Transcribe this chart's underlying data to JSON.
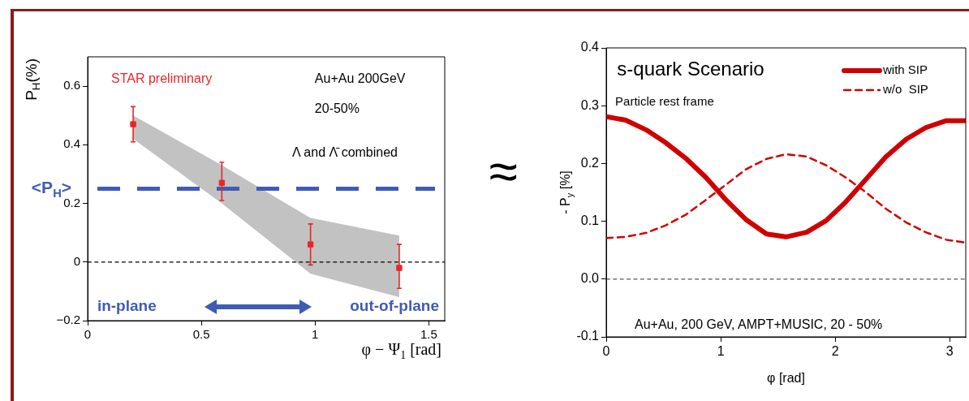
{
  "chart_data": [
    {
      "type": "scatter",
      "xlabel": "φ − Ψ$_{1}$ [rad]",
      "ylabel": "P$_{H}$(%)",
      "xlim": [
        0,
        1.57
      ],
      "xticks": [
        0,
        0.5,
        1,
        1.5
      ],
      "ylim": [
        -0.2,
        0.7
      ],
      "yticks": [
        {
          "value": -0.2,
          "label": "−0.2"
        },
        0,
        0.2,
        0.4,
        0.6
      ],
      "grid": false,
      "legend": false,
      "marker": "square",
      "series": [
        {
          "color": "#e8262a",
          "x": [
            0.2,
            0.59,
            0.98,
            1.37
          ],
          "values": [
            0.47,
            0.27,
            0.06,
            -0.02
          ],
          "errors": [
            [
              0.41,
              0.53
            ],
            [
              0.21,
              0.34
            ],
            [
              -0.01,
              0.13
            ],
            [
              -0.09,
              0.06
            ]
          ],
          "lower": [
            0.42,
            0.2,
            -0.04,
            -0.12
          ],
          "upper": [
            0.5,
            0.33,
            0.15,
            0.09
          ]
        }
      ],
      "ref_lines": [
        {
          "axis": "y",
          "value": 0,
          "color": "#000000",
          "line_style": "dashed"
        },
        {
          "axis": "y",
          "value": 0.25,
          "label": "<P$_{H}$>",
          "color": "#3f5bb5",
          "line_style": "dashed"
        }
      ],
      "annotations": [
        "STAR preliminary",
        "Au+Au 200GeV",
        "20-50%",
        "Λ and Λ̄ combined",
        "in-plane",
        "out-of-plane",
        "≈"
      ]
    },
    {
      "type": "line",
      "xlabel": "φ [rad]",
      "ylabel": "- P$_{y}$ [%]",
      "xlim": [
        0,
        3.14
      ],
      "xticks": [
        0,
        1,
        2,
        3
      ],
      "ylim": [
        -0.1,
        0.4
      ],
      "yticks": [
        {
          "value": -0.1,
          "label": "-0.1"
        },
        {
          "value": 0,
          "label": "0.0"
        },
        0.1,
        0.2,
        0.3,
        0.4
      ],
      "grid": false,
      "legend": "top right",
      "marker": "none",
      "x": [
        0,
        0.17,
        0.35,
        0.52,
        0.7,
        0.87,
        1.05,
        1.22,
        1.4,
        1.57,
        1.75,
        1.92,
        2.09,
        2.27,
        2.44,
        2.62,
        2.79,
        2.97,
        3.14
      ],
      "series": [
        {
          "name": "with SIP",
          "color": "#d00000",
          "line_style": "solid",
          "values": [
            0.281,
            0.275,
            0.258,
            0.236,
            0.208,
            0.176,
            0.136,
            0.103,
            0.078,
            0.073,
            0.081,
            0.101,
            0.133,
            0.173,
            0.211,
            0.242,
            0.262,
            0.274,
            0.274
          ]
        },
        {
          "name": "w/o  SIP",
          "color": "#d00000",
          "line_style": "dashed",
          "values": [
            0.071,
            0.073,
            0.08,
            0.093,
            0.112,
            0.137,
            0.164,
            0.19,
            0.208,
            0.216,
            0.212,
            0.197,
            0.176,
            0.15,
            0.122,
            0.098,
            0.081,
            0.068,
            0.063
          ]
        }
      ],
      "ref_lines": [
        {
          "axis": "y",
          "value": 0,
          "color": "#555555",
          "line_style": "dashed"
        }
      ],
      "annotations": [
        "s-quark Scenario",
        "Particle rest frame",
        "Au+Au, 200 GeV, AMPT+MUSIC, 20 - 50%"
      ]
    }
  ]
}
